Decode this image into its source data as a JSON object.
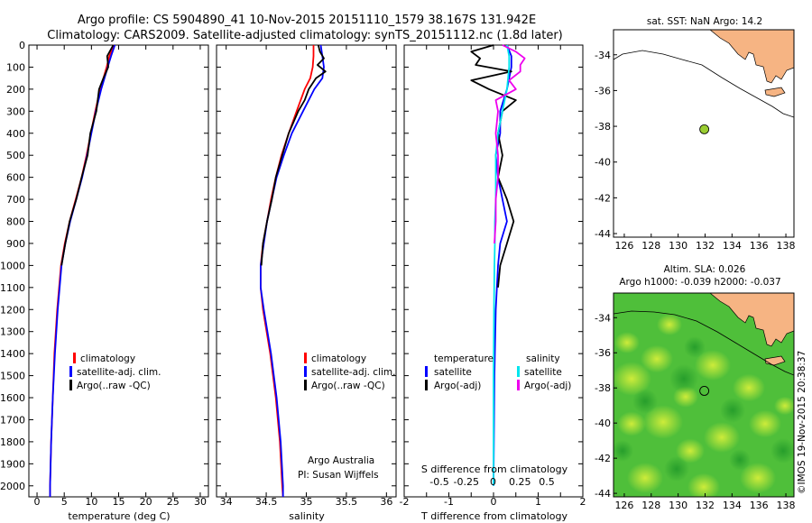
{
  "header": {
    "line1": "Argo profile: CS 5904890_41 10-Nov-2015 20151110_1579 38.167S 131.942E",
    "line2": "Climatology: CARS2009. Satellite-adjusted climatology: synTS_20151112.nc (1.8d later)"
  },
  "colors": {
    "climatology": "#ff0000",
    "satellite": "#0000ff",
    "argo": "#000000",
    "sal_satellite": "#00e5ee",
    "sal_argo": "#ee00ee",
    "land": "#f6b483",
    "sst_point": "#9acd32"
  },
  "depth_ticks": [
    "0",
    "100",
    "200",
    "300",
    "400",
    "500",
    "600",
    "700",
    "800",
    "900",
    "1000",
    "1100",
    "1200",
    "1300",
    "1400",
    "1500",
    "1600",
    "1700",
    "1800",
    "1900",
    "2000"
  ],
  "chart_data": [
    {
      "type": "line",
      "name": "temperature-profile",
      "xlabel": "temperature (deg C)",
      "x_ticks": [
        "0",
        "5",
        "10",
        "15",
        "20",
        "25",
        "30"
      ],
      "xlim": [
        -1.5,
        31.5
      ],
      "ylim": [
        2050,
        0
      ],
      "legend": {
        "position": "bottom-center",
        "items": [
          "climatology",
          "satellite-adj. clim.",
          "Argo(..raw -QC)"
        ]
      },
      "series": [
        {
          "name": "climatology",
          "color": "#ff0000",
          "depth": [
            0,
            50,
            100,
            150,
            200,
            300,
            400,
            500,
            600,
            700,
            800,
            900,
            1000,
            1200,
            1400,
            1600,
            1800,
            2000,
            2050
          ],
          "values": [
            14.1,
            13.3,
            12.8,
            12.2,
            11.6,
            10.7,
            9.9,
            9.1,
            8.2,
            7.1,
            6.0,
            5.1,
            4.4,
            3.7,
            3.2,
            2.9,
            2.6,
            2.4,
            2.4
          ]
        },
        {
          "name": "satellite-adj. clim.",
          "color": "#0000ff",
          "depth": [
            0,
            50,
            100,
            150,
            200,
            300,
            400,
            500,
            600,
            700,
            800,
            900,
            1000,
            1200,
            1400,
            1600,
            1800,
            2000,
            2050
          ],
          "values": [
            14.3,
            13.6,
            13.0,
            12.4,
            11.8,
            10.8,
            10.0,
            9.2,
            8.3,
            7.2,
            6.1,
            5.2,
            4.5,
            3.8,
            3.3,
            2.9,
            2.6,
            2.4,
            2.4
          ]
        },
        {
          "name": "Argo(..raw -QC)",
          "color": "#000000",
          "depth": [
            0,
            50,
            100,
            150,
            200,
            300,
            400,
            500,
            600,
            700,
            800,
            900,
            1000
          ],
          "values": [
            14.0,
            12.9,
            13.1,
            12.2,
            11.4,
            10.9,
            9.8,
            9.3,
            8.2,
            7.2,
            6.0,
            5.2,
            4.5
          ]
        }
      ]
    },
    {
      "type": "line",
      "name": "salinity-profile",
      "xlabel": "salinity",
      "x_ticks": [
        "34",
        "34.5",
        "35",
        "35.5",
        "36"
      ],
      "xlim": [
        33.88,
        36.12
      ],
      "ylim": [
        2050,
        0
      ],
      "legend": {
        "position": "bottom-center",
        "items": [
          "climatology",
          "satellite-adj. clim.",
          "Argo(..raw -QC)"
        ]
      },
      "annotation": [
        "Argo Australia",
        "PI: Susan Wijffels"
      ],
      "series": [
        {
          "name": "climatology",
          "color": "#ff0000",
          "depth": [
            0,
            50,
            100,
            150,
            200,
            300,
            400,
            500,
            600,
            700,
            800,
            900,
            1000,
            1100,
            1200,
            1400,
            1600,
            1800,
            2000,
            2050
          ],
          "values": [
            35.09,
            35.09,
            35.08,
            35.05,
            34.98,
            34.88,
            34.78,
            34.69,
            34.62,
            34.56,
            34.51,
            34.46,
            34.43,
            34.43,
            34.46,
            34.55,
            34.62,
            34.67,
            34.7,
            34.71
          ]
        },
        {
          "name": "satellite-adj. clim.",
          "color": "#0000ff",
          "depth": [
            0,
            50,
            100,
            150,
            200,
            300,
            400,
            500,
            600,
            700,
            800,
            900,
            1000,
            1100,
            1200,
            1400,
            1600,
            1800,
            2000,
            2050
          ],
          "values": [
            35.18,
            35.2,
            35.22,
            35.2,
            35.1,
            34.96,
            34.82,
            34.72,
            34.63,
            34.57,
            34.51,
            34.47,
            34.43,
            34.43,
            34.47,
            34.56,
            34.63,
            34.68,
            34.71,
            34.71
          ]
        },
        {
          "name": "Argo(..raw -QC)",
          "color": "#000000",
          "depth": [
            0,
            30,
            60,
            90,
            120,
            150,
            200,
            250,
            300,
            400,
            500,
            600,
            700,
            800,
            900,
            1000
          ],
          "values": [
            35.15,
            35.17,
            35.22,
            35.14,
            35.24,
            35.12,
            35.03,
            34.98,
            34.9,
            34.78,
            34.7,
            34.62,
            34.57,
            34.51,
            34.46,
            34.44
          ]
        }
      ]
    },
    {
      "type": "line",
      "name": "difference-profile",
      "xlabel": "T difference from climatology",
      "xlabel_top": "S difference from climatology",
      "x_ticks": [
        "-2",
        "-1.5",
        "-1",
        "-0.5",
        "0",
        "0.5",
        "1",
        "1.5",
        "2"
      ],
      "x_ticks_shown": [
        "-2",
        "-1",
        "0",
        "1",
        "2"
      ],
      "s_ticks": [
        "-0.5",
        "-0.25",
        "0",
        "0.25",
        "0.5"
      ],
      "xlim": [
        -2.0,
        2.0
      ],
      "ylim": [
        2050,
        0
      ],
      "legend": {
        "position": "bottom-center",
        "titles": [
          "temperature",
          "salinity"
        ],
        "items": [
          "satellite",
          "Argo(-adj)",
          "satellite",
          "Argo(-adj)"
        ]
      },
      "series": [
        {
          "name": "temperature satellite",
          "color": "#0000ff",
          "depth": [
            0,
            50,
            100,
            200,
            300,
            400,
            500,
            600,
            700,
            800,
            900,
            1000,
            1200,
            1500,
            2000
          ],
          "values": [
            0.3,
            0.4,
            0.4,
            0.3,
            0.15,
            0.15,
            0.05,
            0.1,
            0.2,
            0.3,
            0.15,
            0.1,
            0.05,
            0.02,
            0.0
          ]
        },
        {
          "name": "temperature Argo(-adj)",
          "color": "#000000",
          "depth": [
            0,
            30,
            60,
            90,
            120,
            160,
            200,
            250,
            300,
            400,
            500,
            600,
            700,
            800,
            900,
            1000,
            1100
          ],
          "values": [
            0.0,
            -0.5,
            -0.3,
            -0.4,
            0.4,
            -0.5,
            -0.1,
            0.5,
            0.2,
            0.1,
            0.2,
            0.1,
            0.3,
            0.45,
            0.3,
            0.15,
            0.1
          ]
        },
        {
          "name": "salinity satellite",
          "color": "#00e5ee",
          "depth": [
            0,
            50,
            100,
            200,
            300,
            400,
            500,
            600,
            700,
            800,
            900,
            1000,
            1200,
            1500,
            2000
          ],
          "values": [
            0.3,
            0.35,
            0.35,
            0.3,
            0.2,
            0.1,
            0.05,
            0.05,
            0.05,
            0.03,
            0.03,
            0.02,
            0.01,
            0.0,
            0.0
          ]
        },
        {
          "name": "salinity Argo(-adj)",
          "color": "#ee00ee",
          "depth": [
            0,
            30,
            60,
            90,
            120,
            160,
            200,
            250,
            300,
            400,
            500,
            600,
            700,
            800,
            900
          ],
          "values": [
            0.2,
            0.5,
            0.7,
            0.6,
            0.6,
            0.35,
            0.5,
            0.05,
            0.1,
            0.05,
            0.1,
            0.1,
            0.05,
            0.05,
            0.02
          ]
        }
      ]
    }
  ],
  "maps": {
    "top": {
      "title": "sat. SST: NaN Argo: 14.2",
      "x_ticks": [
        "126",
        "128",
        "130",
        "132",
        "134",
        "136",
        "138"
      ],
      "y_ticks": [
        "-34",
        "-36",
        "-38",
        "-40",
        "-42",
        "-44"
      ],
      "xlim": [
        125.2,
        138.6
      ],
      "ylim": [
        -32.6,
        -44.2
      ],
      "point": {
        "lon": 131.942,
        "lat": -38.167
      }
    },
    "bottom": {
      "title1": "Altim. SLA: 0.026",
      "title2": "Argo h1000: -0.039 h2000: -0.037",
      "x_ticks": [
        "126",
        "128",
        "130",
        "132",
        "134",
        "136",
        "138"
      ],
      "y_ticks": [
        "-34",
        "-36",
        "-38",
        "-40",
        "-42",
        "-44"
      ],
      "xlim": [
        125.2,
        138.6
      ],
      "ylim": [
        -32.6,
        -44.2
      ],
      "point": {
        "lon": 131.942,
        "lat": -38.167
      }
    },
    "credit": "©IMOS 19-Nov-2015 20:38:37"
  }
}
